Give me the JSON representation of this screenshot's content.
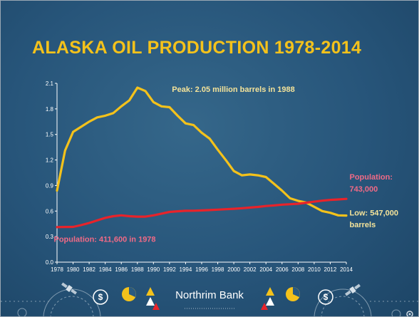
{
  "slide": {
    "title": "ALASKA OIL PRODUCTION  1978-2014",
    "brand": "Northrim Bank"
  },
  "colors": {
    "background": "#2a5a80",
    "title": "#f4c21b",
    "oil": "#f4c21b",
    "population": "#e8232a",
    "population_label": "#f06a86",
    "oil_label": "#f4e39a"
  },
  "icons": [
    "dollar-coin-icon",
    "pie-chart-icon",
    "chess-piece-icon",
    "satellite-icon",
    "gear-icon"
  ],
  "chart_data": {
    "type": "line",
    "title": "ALASKA OIL PRODUCTION  1978-2014",
    "xlim": [
      1978,
      2014
    ],
    "ylim": [
      0,
      2.1
    ],
    "x_ticks": [
      "1978",
      "1982",
      "1986",
      "1990",
      "1994",
      "1998",
      "2002",
      "2006",
      "2010",
      "2014"
    ],
    "y_ticks": [
      "0.0",
      "0.3",
      "0.6",
      "0.9",
      "1.2",
      "1.5",
      "1.8",
      "2.1"
    ],
    "x_tick_values": [
      1978,
      1980,
      1982,
      1984,
      1986,
      1988,
      1990,
      1992,
      1994,
      1996,
      1998,
      2000,
      2002,
      2004,
      2006,
      2008,
      2010,
      2012,
      2014
    ],
    "y_tick_values": [
      0,
      0.3,
      0.6,
      0.9,
      1.2,
      1.5,
      1.8,
      2.1
    ],
    "x_tick_labels": [
      "1978",
      "1980",
      "1982",
      "1984",
      "1986",
      "1988",
      "1990",
      "1992",
      "1994",
      "1996",
      "1998",
      "2000",
      "2002",
      "2004",
      "2006",
      "2008",
      "2010",
      "2012",
      "2014"
    ],
    "y_tick_labels": [
      "0.0",
      "0.3",
      "0.6",
      "0.9",
      "1.2",
      "1.5",
      "1.8",
      "2.1"
    ],
    "series": [
      {
        "key": "oil",
        "color": "#f4c21b",
        "x": [
          1978,
          1979,
          1980,
          1981,
          1982,
          1983,
          1984,
          1985,
          1986,
          1987,
          1988,
          1989,
          1990,
          1991,
          1992,
          1993,
          1994,
          1995,
          1996,
          1997,
          1998,
          1999,
          2000,
          2001,
          2002,
          2003,
          2004,
          2005,
          2006,
          2007,
          2008,
          2009,
          2010,
          2011,
          2012,
          2013,
          2014
        ],
        "values": [
          0.84,
          1.31,
          1.53,
          1.59,
          1.65,
          1.7,
          1.72,
          1.75,
          1.83,
          1.9,
          2.05,
          2.01,
          1.88,
          1.83,
          1.82,
          1.72,
          1.63,
          1.61,
          1.52,
          1.45,
          1.32,
          1.2,
          1.07,
          1.02,
          1.03,
          1.02,
          1.0,
          0.92,
          0.84,
          0.75,
          0.72,
          0.7,
          0.65,
          0.6,
          0.58,
          0.55,
          0.547
        ]
      },
      {
        "key": "population",
        "color": "#e8232a",
        "x": [
          1978,
          1979,
          1980,
          1981,
          1982,
          1983,
          1984,
          1985,
          1986,
          1987,
          1988,
          1989,
          1990,
          1991,
          1992,
          1993,
          1994,
          1995,
          1996,
          1997,
          1998,
          1999,
          2000,
          2001,
          2002,
          2003,
          2004,
          2005,
          2006,
          2007,
          2008,
          2009,
          2010,
          2011,
          2012,
          2013,
          2014
        ],
        "values": [
          0.4116,
          0.413,
          0.414,
          0.435,
          0.46,
          0.49,
          0.52,
          0.54,
          0.55,
          0.54,
          0.535,
          0.535,
          0.55,
          0.57,
          0.59,
          0.597,
          0.603,
          0.604,
          0.607,
          0.612,
          0.617,
          0.622,
          0.627,
          0.633,
          0.641,
          0.648,
          0.659,
          0.666,
          0.675,
          0.68,
          0.686,
          0.698,
          0.71,
          0.722,
          0.731,
          0.736,
          0.743
        ]
      }
    ],
    "annotations": [
      {
        "key": "peak",
        "text": "Peak: 2.05 million barrels in 1988",
        "x": 1992.3,
        "y": 2.0,
        "color": "#f4e39a"
      },
      {
        "key": "population-2014",
        "text": "Population:",
        "x": 2014.4,
        "y": 0.97,
        "color": "#f06a86"
      },
      {
        "key": "population-2014-value",
        "text": "743,000",
        "x": 2014.4,
        "y": 0.83,
        "color": "#f06a86"
      },
      {
        "key": "low",
        "text": "Low: 547,000",
        "x": 2014.4,
        "y": 0.55,
        "color": "#f4e39a"
      },
      {
        "key": "low-unit",
        "text": "barrels",
        "x": 2014.4,
        "y": 0.41,
        "color": "#f4e39a"
      },
      {
        "key": "population-1978",
        "text": "Population: 411,600 in 1978",
        "x": 1977.6,
        "y": 0.24,
        "color": "#f06a86"
      }
    ],
    "grid": false,
    "legend": "none"
  }
}
